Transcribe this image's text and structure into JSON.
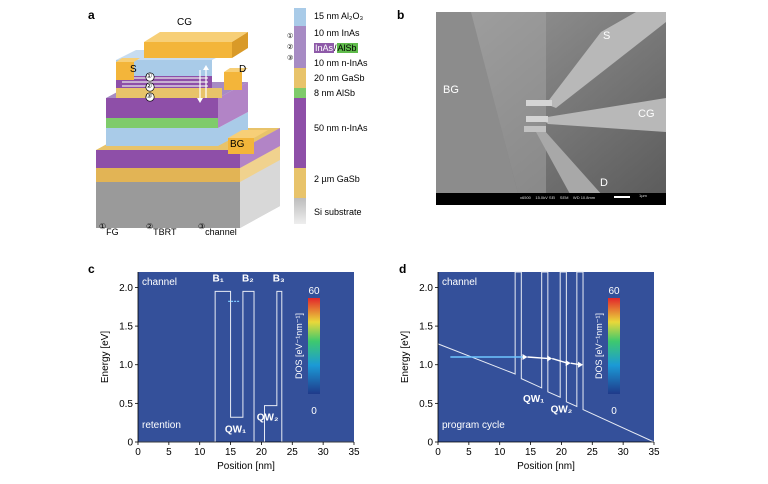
{
  "panels": {
    "a": {
      "letter": "a",
      "labels": {
        "cg": "CG",
        "s": "S",
        "d": "D",
        "bg": "BG"
      },
      "stack": [
        {
          "text": "15 nm Al₂O₃",
          "color": "#a9cbe8"
        },
        {
          "text": "10 nm InAs",
          "color": "#a78bc4"
        },
        {
          "text_a": "InAs",
          "text_b": "AlSb",
          "color_a": "#8e5aa8",
          "color_b": "#7fcb6b"
        },
        {
          "text": "10 nm n-InAs",
          "color": "#8e5aa8"
        },
        {
          "text": "20 nm GaSb",
          "color": "#e8c36a"
        },
        {
          "text": "8 nm AlSb",
          "color": "#7fcb6b"
        },
        {
          "text": "50 nm n-InAs",
          "color": "#8e5aa8"
        },
        {
          "text": "2 µm GaSb",
          "color": "#e8c36a"
        },
        {
          "text": "Si substrate",
          "color": "#c7c7c7"
        }
      ],
      "markers": [
        "①",
        "②",
        "③"
      ],
      "legend": [
        {
          "num": "①",
          "label": "FG"
        },
        {
          "num": "②",
          "label": "TBRT"
        },
        {
          "num": "③",
          "label": "channel"
        }
      ]
    },
    "b": {
      "letter": "b",
      "labels": {
        "s": "S",
        "bg": "BG",
        "cg": "CG",
        "d": "D"
      },
      "sem_footer": "x6500    15.0kV SEI    SEM    WD 10.8mm",
      "scale": "1µm"
    },
    "c": {
      "letter": "c",
      "corner_label": "channel",
      "bottom_label": "retention",
      "barriers": [
        "B₁",
        "B₂",
        "B₃"
      ],
      "wells": [
        "QW₁",
        "QW₂"
      ]
    },
    "d": {
      "letter": "d",
      "corner_label": "channel",
      "bottom_label": "program cycle",
      "wells": [
        "QW₁",
        "QW₂"
      ]
    }
  },
  "colorbar": {
    "title": "DOS [eV⁻¹nm⁻¹]",
    "max": "60",
    "min": "0"
  },
  "chart_data": [
    {
      "type": "heatmap",
      "title": "",
      "xlabel": "Position [nm]",
      "ylabel": "Energy [eV]",
      "xlim": [
        0,
        35
      ],
      "ylim": [
        0,
        2.2
      ],
      "xticks": [
        0,
        5,
        10,
        15,
        20,
        25,
        30,
        35
      ],
      "yticks": [
        0,
        0.5,
        1.0,
        1.5,
        2.0
      ],
      "ytick_labels": [
        "0",
        "0.5",
        "1.0",
        "1.5",
        "2.0"
      ],
      "band_edge": [
        [
          0,
          0
        ],
        [
          12.5,
          0
        ],
        [
          12.5,
          1.95
        ],
        [
          15,
          1.95
        ],
        [
          15,
          0.32
        ],
        [
          17,
          0.32
        ],
        [
          17,
          1.95
        ],
        [
          18.8,
          1.95
        ],
        [
          18.8,
          0
        ],
        [
          20.5,
          0
        ],
        [
          20.5,
          0.47
        ],
        [
          22.5,
          0.47
        ],
        [
          22.5,
          1.95
        ],
        [
          23.3,
          1.95
        ],
        [
          23.3,
          0
        ],
        [
          35,
          0
        ]
      ],
      "wells_energy": [
        0.32,
        0.47
      ],
      "colorbar_range": [
        0,
        60
      ]
    },
    {
      "type": "heatmap",
      "title": "",
      "xlabel": "Position [nm]",
      "ylabel": "Energy [eV]",
      "xlim": [
        0,
        35
      ],
      "ylim": [
        0,
        2.2
      ],
      "xticks": [
        0,
        5,
        10,
        15,
        20,
        25,
        30,
        35
      ],
      "yticks": [
        0,
        0.5,
        1.0,
        1.5,
        2.0
      ],
      "ytick_labels": [
        "0",
        "0.5",
        "1.0",
        "1.5",
        "2.0"
      ],
      "band_edge": [
        [
          0,
          1.27
        ],
        [
          12.5,
          0.88
        ],
        [
          12.5,
          2.2
        ],
        [
          13.5,
          2.2
        ],
        [
          13.5,
          0.82
        ],
        [
          16.8,
          0.7
        ],
        [
          16.8,
          2.2
        ],
        [
          17.8,
          2.2
        ],
        [
          17.8,
          0.65
        ],
        [
          19.8,
          0.58
        ],
        [
          19.8,
          2.2
        ],
        [
          20.8,
          2.2
        ],
        [
          20.8,
          0.52
        ],
        [
          22.5,
          0.46
        ],
        [
          22.5,
          2.2
        ],
        [
          23.5,
          2.2
        ],
        [
          23.5,
          0.42
        ],
        [
          35,
          0
        ]
      ],
      "transport_arrow": [
        [
          2,
          1.1
        ],
        [
          14.5,
          1.1
        ],
        [
          18.5,
          1.08
        ],
        [
          21.5,
          1.02
        ],
        [
          23.5,
          1.0
        ]
      ],
      "colorbar_range": [
        0,
        60
      ]
    }
  ]
}
